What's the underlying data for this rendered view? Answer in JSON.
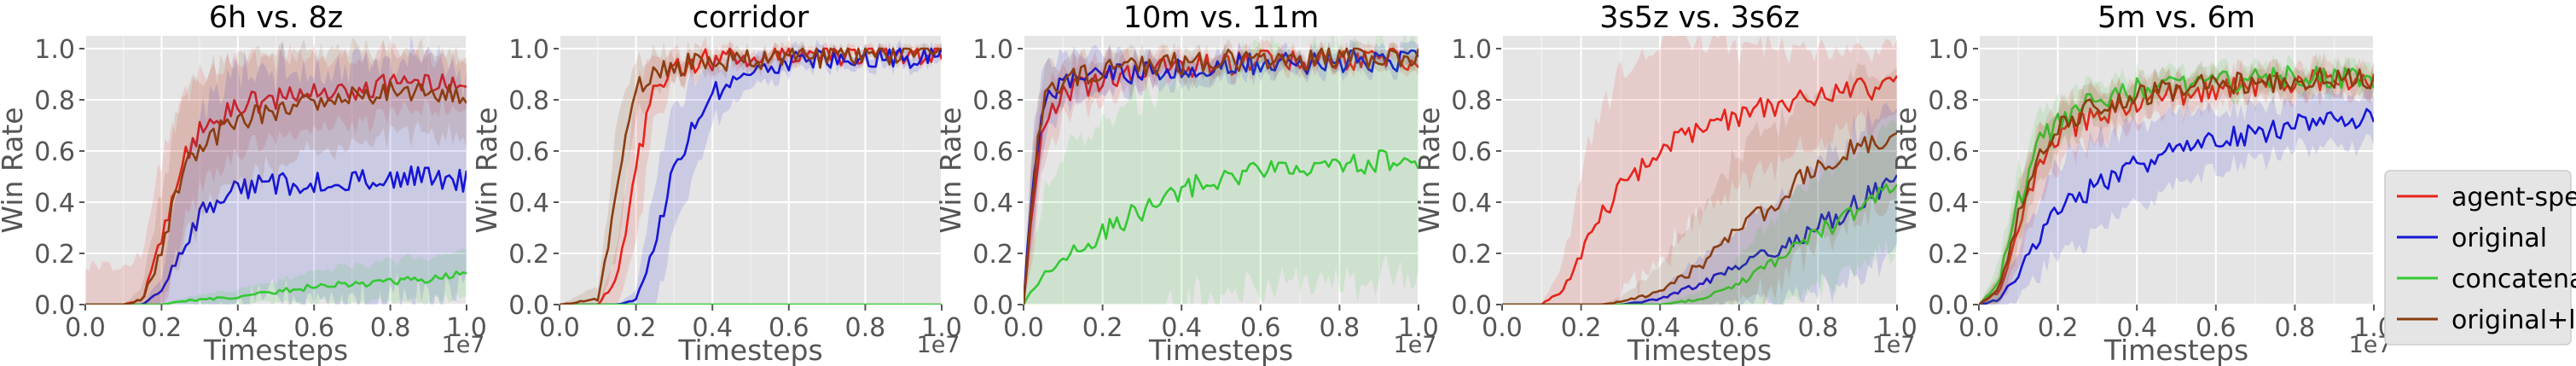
{
  "colors": {
    "agent_specific": "#e8231c",
    "original": "#1616d6",
    "concatenated": "#34c934",
    "original_local": "#8b3d11",
    "panel_background": "#e5e5e5",
    "grid": "#ffffff",
    "tick_text": "#555555"
  },
  "legend": {
    "placement": "right of last panel",
    "entries": [
      {
        "key": "agent_specific",
        "label": "agent-specific"
      },
      {
        "key": "original",
        "label": "original"
      },
      {
        "key": "concatenated",
        "label": "concatenated"
      },
      {
        "key": "original_local",
        "label": "original+local"
      }
    ]
  },
  "chart_data": [
    {
      "type": "line",
      "title": "6h vs. 8z",
      "xlabel": "Timesteps",
      "ylabel": "Win Rate",
      "x_scale_label": "1e7",
      "xlim": [
        0,
        1.0
      ],
      "ylim": [
        0,
        1.05
      ],
      "xticks": [
        "0.0",
        "0.2",
        "0.4",
        "0.6",
        "0.8",
        "1.0"
      ],
      "yticks": [
        "0.0",
        "0.2",
        "0.4",
        "0.6",
        "0.8",
        "1.0"
      ],
      "grid": true,
      "x": [
        0,
        0.1,
        0.15,
        0.2,
        0.25,
        0.3,
        0.4,
        0.5,
        0.6,
        0.7,
        0.8,
        0.9,
        1.0
      ],
      "series": [
        {
          "key": "agent_specific",
          "values": [
            0,
            0,
            0.02,
            0.25,
            0.55,
            0.68,
            0.78,
            0.8,
            0.83,
            0.84,
            0.86,
            0.88,
            0.86
          ],
          "band": [
            0.15,
            0.15,
            0.18,
            0.3,
            0.25,
            0.22,
            0.18,
            0.16,
            0.14,
            0.13,
            0.12,
            0.1,
            0.1
          ]
        },
        {
          "key": "original",
          "values": [
            0,
            0,
            0,
            0.05,
            0.22,
            0.35,
            0.45,
            0.47,
            0.48,
            0.48,
            0.49,
            0.5,
            0.48
          ],
          "band": [
            0,
            0,
            0,
            0.05,
            0.3,
            0.4,
            0.45,
            0.45,
            0.45,
            0.45,
            0.45,
            0.45,
            0.42
          ]
        },
        {
          "key": "concatenated",
          "values": [
            0,
            0,
            0,
            0,
            0.01,
            0.02,
            0.03,
            0.05,
            0.07,
            0.08,
            0.09,
            0.1,
            0.12
          ],
          "band": [
            0,
            0,
            0,
            0,
            0.01,
            0.02,
            0.03,
            0.04,
            0.06,
            0.07,
            0.08,
            0.08,
            0.09
          ]
        },
        {
          "key": "original_local",
          "values": [
            0,
            0,
            0.02,
            0.2,
            0.5,
            0.62,
            0.72,
            0.76,
            0.8,
            0.82,
            0.83,
            0.84,
            0.82
          ],
          "band": [
            0,
            0,
            0.05,
            0.25,
            0.3,
            0.28,
            0.25,
            0.22,
            0.2,
            0.18,
            0.16,
            0.16,
            0.16
          ]
        }
      ]
    },
    {
      "type": "line",
      "title": "corridor",
      "xlabel": "Timesteps",
      "ylabel": "Win Rate",
      "x_scale_label": "1e7",
      "xlim": [
        0,
        1.0
      ],
      "ylim": [
        0,
        1.05
      ],
      "xticks": [
        "0.0",
        "0.2",
        "0.4",
        "0.6",
        "0.8",
        "1.0"
      ],
      "yticks": [
        "0.0",
        "0.2",
        "0.4",
        "0.6",
        "0.8",
        "1.0"
      ],
      "grid": true,
      "x": [
        0,
        0.1,
        0.15,
        0.2,
        0.25,
        0.3,
        0.4,
        0.5,
        0.6,
        0.7,
        0.8,
        0.9,
        1.0
      ],
      "series": [
        {
          "key": "agent_specific",
          "values": [
            0,
            0,
            0.1,
            0.55,
            0.85,
            0.93,
            0.96,
            0.97,
            0.98,
            0.98,
            0.98,
            0.98,
            0.98
          ],
          "band": [
            0,
            0,
            0.12,
            0.3,
            0.12,
            0.06,
            0.04,
            0.03,
            0.03,
            0.02,
            0.02,
            0.02,
            0.02
          ]
        },
        {
          "key": "original",
          "values": [
            0,
            0,
            0,
            0.02,
            0.25,
            0.55,
            0.83,
            0.92,
            0.95,
            0.96,
            0.97,
            0.97,
            0.97
          ],
          "band": [
            0,
            0,
            0,
            0.04,
            0.25,
            0.25,
            0.12,
            0.06,
            0.04,
            0.03,
            0.03,
            0.03,
            0.03
          ]
        },
        {
          "key": "concatenated",
          "values": [
            0,
            0,
            0,
            0,
            0,
            0,
            0,
            0,
            0,
            0,
            0,
            0,
            0
          ],
          "band": [
            0,
            0,
            0,
            0,
            0,
            0,
            0,
            0,
            0,
            0,
            0,
            0,
            0
          ]
        },
        {
          "key": "original_local",
          "values": [
            0,
            0.02,
            0.45,
            0.85,
            0.9,
            0.93,
            0.95,
            0.96,
            0.97,
            0.97,
            0.98,
            0.98,
            0.97
          ],
          "band": [
            0,
            0.05,
            0.25,
            0.12,
            0.08,
            0.05,
            0.04,
            0.03,
            0.03,
            0.02,
            0.02,
            0.02,
            0.02
          ]
        }
      ]
    },
    {
      "type": "line",
      "title": "10m vs. 11m",
      "xlabel": "Timesteps",
      "ylabel": "Win Rate",
      "x_scale_label": "1e7",
      "xlim": [
        0,
        1.0
      ],
      "ylim": [
        0,
        1.05
      ],
      "xticks": [
        "0.0",
        "0.2",
        "0.4",
        "0.6",
        "0.8",
        "1.0"
      ],
      "yticks": [
        "0.0",
        "0.2",
        "0.4",
        "0.6",
        "0.8",
        "1.0"
      ],
      "grid": true,
      "x": [
        0,
        0.02,
        0.05,
        0.1,
        0.2,
        0.3,
        0.4,
        0.5,
        0.6,
        0.7,
        0.8,
        0.9,
        1.0
      ],
      "series": [
        {
          "key": "agent_specific",
          "values": [
            0,
            0.35,
            0.7,
            0.82,
            0.88,
            0.91,
            0.93,
            0.94,
            0.95,
            0.95,
            0.96,
            0.96,
            0.96
          ],
          "band": [
            0,
            0.2,
            0.15,
            0.1,
            0.08,
            0.06,
            0.05,
            0.04,
            0.04,
            0.04,
            0.03,
            0.03,
            0.03
          ]
        },
        {
          "key": "original",
          "values": [
            0,
            0.45,
            0.78,
            0.86,
            0.89,
            0.91,
            0.92,
            0.93,
            0.94,
            0.94,
            0.95,
            0.95,
            0.95
          ],
          "band": [
            0,
            0.2,
            0.15,
            0.1,
            0.08,
            0.06,
            0.05,
            0.05,
            0.04,
            0.04,
            0.04,
            0.04,
            0.04
          ]
        },
        {
          "key": "concatenated",
          "values": [
            0,
            0.05,
            0.12,
            0.18,
            0.28,
            0.37,
            0.45,
            0.5,
            0.53,
            0.55,
            0.54,
            0.56,
            0.55
          ],
          "band": [
            0,
            0.15,
            0.3,
            0.4,
            0.45,
            0.45,
            0.45,
            0.45,
            0.45,
            0.45,
            0.45,
            0.45,
            0.45
          ]
        },
        {
          "key": "original_local",
          "values": [
            0,
            0.4,
            0.8,
            0.88,
            0.91,
            0.93,
            0.94,
            0.95,
            0.96,
            0.96,
            0.97,
            0.97,
            0.97
          ],
          "band": [
            0,
            0.2,
            0.12,
            0.08,
            0.06,
            0.05,
            0.04,
            0.04,
            0.03,
            0.03,
            0.03,
            0.03,
            0.03
          ]
        }
      ]
    },
    {
      "type": "line",
      "title": "3s5z vs. 3s6z",
      "xlabel": "Timesteps",
      "ylabel": "Win Rate",
      "x_scale_label": "1e7",
      "xlim": [
        0,
        1.0
      ],
      "ylim": [
        0,
        1.05
      ],
      "xticks": [
        "0.0",
        "0.2",
        "0.4",
        "0.6",
        "0.8",
        "1.0"
      ],
      "yticks": [
        "0.0",
        "0.2",
        "0.4",
        "0.6",
        "0.8",
        "1.0"
      ],
      "grid": true,
      "x": [
        0,
        0.1,
        0.15,
        0.2,
        0.25,
        0.3,
        0.4,
        0.5,
        0.6,
        0.7,
        0.8,
        0.9,
        1.0
      ],
      "series": [
        {
          "key": "agent_specific",
          "values": [
            0,
            0,
            0.05,
            0.2,
            0.35,
            0.45,
            0.6,
            0.68,
            0.74,
            0.78,
            0.82,
            0.84,
            0.85
          ],
          "band": [
            0,
            0,
            0.1,
            0.3,
            0.4,
            0.45,
            0.42,
            0.35,
            0.28,
            0.22,
            0.18,
            0.15,
            0.13
          ]
        },
        {
          "key": "original",
          "values": [
            0,
            0,
            0,
            0,
            0,
            0,
            0.02,
            0.08,
            0.15,
            0.22,
            0.3,
            0.4,
            0.5
          ],
          "band": [
            0,
            0,
            0,
            0,
            0,
            0,
            0.03,
            0.1,
            0.15,
            0.2,
            0.25,
            0.28,
            0.3
          ]
        },
        {
          "key": "concatenated",
          "values": [
            0,
            0,
            0,
            0,
            0,
            0,
            0,
            0.02,
            0.08,
            0.18,
            0.28,
            0.38,
            0.5
          ],
          "band": [
            0,
            0,
            0,
            0,
            0,
            0,
            0,
            0.03,
            0.1,
            0.18,
            0.22,
            0.25,
            0.25
          ]
        },
        {
          "key": "original_local",
          "values": [
            0,
            0,
            0,
            0,
            0,
            0.01,
            0.05,
            0.15,
            0.28,
            0.42,
            0.55,
            0.62,
            0.65
          ],
          "band": [
            0,
            0,
            0,
            0,
            0,
            0.02,
            0.1,
            0.22,
            0.3,
            0.32,
            0.3,
            0.28,
            0.25
          ]
        }
      ]
    },
    {
      "type": "line",
      "title": "5m vs. 6m",
      "xlabel": "Timesteps",
      "ylabel": "Win Rate",
      "x_scale_label": "1e7",
      "xlim": [
        0,
        1.0
      ],
      "ylim": [
        0,
        1.05
      ],
      "xticks": [
        "0.0",
        "0.2",
        "0.4",
        "0.6",
        "0.8",
        "1.0"
      ],
      "yticks": [
        "0.0",
        "0.2",
        "0.4",
        "0.6",
        "0.8",
        "1.0"
      ],
      "grid": true,
      "x": [
        0,
        0.05,
        0.1,
        0.15,
        0.2,
        0.3,
        0.4,
        0.5,
        0.6,
        0.7,
        0.8,
        0.9,
        1.0
      ],
      "series": [
        {
          "key": "agent_specific",
          "values": [
            0,
            0.05,
            0.3,
            0.55,
            0.66,
            0.74,
            0.79,
            0.82,
            0.84,
            0.86,
            0.87,
            0.88,
            0.87
          ],
          "band": [
            0,
            0.05,
            0.15,
            0.15,
            0.12,
            0.1,
            0.08,
            0.07,
            0.06,
            0.06,
            0.06,
            0.06,
            0.06
          ]
        },
        {
          "key": "original",
          "values": [
            0,
            0.02,
            0.12,
            0.25,
            0.36,
            0.47,
            0.55,
            0.6,
            0.64,
            0.67,
            0.7,
            0.72,
            0.72
          ],
          "band": [
            0,
            0.05,
            0.1,
            0.15,
            0.18,
            0.18,
            0.16,
            0.14,
            0.12,
            0.1,
            0.1,
            0.1,
            0.1
          ]
        },
        {
          "key": "concatenated",
          "values": [
            0,
            0.08,
            0.4,
            0.62,
            0.72,
            0.8,
            0.84,
            0.86,
            0.87,
            0.88,
            0.89,
            0.89,
            0.89
          ],
          "band": [
            0,
            0.08,
            0.12,
            0.1,
            0.08,
            0.07,
            0.06,
            0.05,
            0.05,
            0.05,
            0.05,
            0.05,
            0.05
          ]
        },
        {
          "key": "original_local",
          "values": [
            0,
            0.06,
            0.35,
            0.58,
            0.7,
            0.78,
            0.82,
            0.84,
            0.86,
            0.87,
            0.88,
            0.89,
            0.88
          ],
          "band": [
            0,
            0.06,
            0.12,
            0.1,
            0.08,
            0.07,
            0.06,
            0.05,
            0.05,
            0.05,
            0.05,
            0.05,
            0.05
          ]
        }
      ]
    }
  ]
}
